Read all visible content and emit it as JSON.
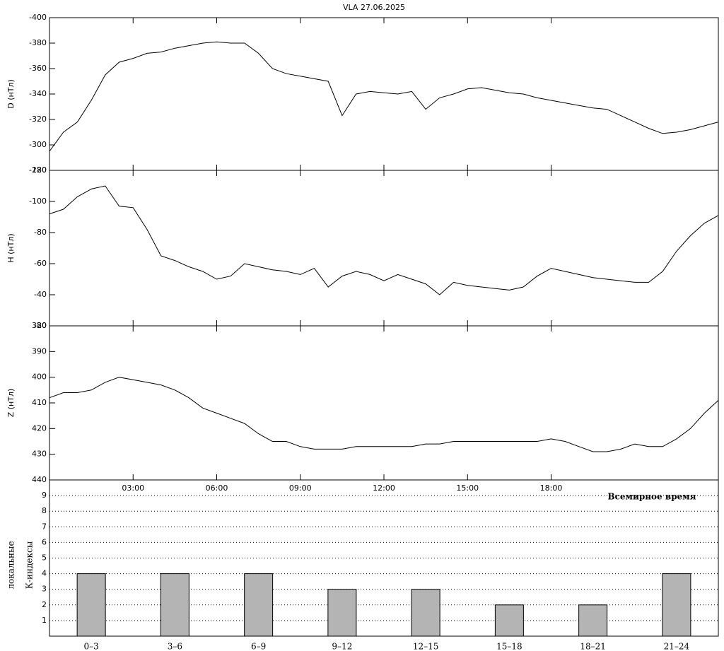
{
  "chart_data": [
    {
      "type": "line",
      "title": "VLA   27.06.2025",
      "ylabel": "D (нТл)",
      "xlim": [
        0,
        24
      ],
      "ylim": [
        -280,
        -400
      ],
      "yticks": [
        -280,
        -300,
        -320,
        -340,
        -360,
        -380,
        -400
      ],
      "x": [
        0,
        0.5,
        1,
        1.5,
        2,
        2.5,
        3,
        3.5,
        4,
        4.5,
        5,
        5.5,
        6,
        6.5,
        7,
        7.5,
        8,
        8.5,
        9,
        9.5,
        10,
        10.5,
        11,
        11.5,
        12,
        12.5,
        13,
        13.5,
        14,
        14.5,
        15,
        15.5,
        16,
        16.5,
        17,
        17.5,
        18,
        18.5,
        19,
        19.5,
        20,
        20.5,
        21,
        21.5,
        22,
        22.5,
        23,
        23.5,
        24
      ],
      "series": [
        {
          "name": "D",
          "color": "#000000",
          "values": [
            -295,
            -310,
            -318,
            -335,
            -355,
            -365,
            -368,
            -372,
            -373,
            -376,
            -378,
            -380,
            -381,
            -380,
            -380,
            -372,
            -360,
            -356,
            -354,
            -352,
            -350,
            -323,
            -340,
            -342,
            -341,
            -340,
            -342,
            -328,
            -337,
            -340,
            -344,
            -345,
            -343,
            -341,
            -340,
            -337,
            -335,
            -333,
            -331,
            -329,
            -328,
            -323,
            -318,
            -313,
            -309,
            -310,
            -312,
            -315,
            -318
          ]
        }
      ]
    },
    {
      "type": "line",
      "ylabel": "H (нТл)",
      "xlim": [
        0,
        24
      ],
      "ylim": [
        -20,
        -120
      ],
      "yticks": [
        -20,
        -40,
        -60,
        -80,
        -100,
        -120
      ],
      "x": [
        0,
        0.5,
        1,
        1.5,
        2,
        2.5,
        3,
        3.5,
        4,
        4.5,
        5,
        5.5,
        6,
        6.5,
        7,
        7.5,
        8,
        8.5,
        9,
        9.5,
        10,
        10.5,
        11,
        11.5,
        12,
        12.5,
        13,
        13.5,
        14,
        14.5,
        15,
        15.5,
        16,
        16.5,
        17,
        17.5,
        18,
        18.5,
        19,
        19.5,
        20,
        20.5,
        21,
        21.5,
        22,
        22.5,
        23,
        23.5,
        24
      ],
      "series": [
        {
          "name": "H",
          "color": "#000000",
          "values": [
            -92,
            -95,
            -103,
            -108,
            -110,
            -97,
            -96,
            -82,
            -65,
            -62,
            -58,
            -55,
            -50,
            -52,
            -60,
            -58,
            -56,
            -55,
            -53,
            -57,
            -45,
            -52,
            -55,
            -53,
            -49,
            -53,
            -50,
            -47,
            -40,
            -48,
            -46,
            -45,
            -44,
            -43,
            -45,
            -52,
            -57,
            -55,
            -53,
            -51,
            -50,
            -49,
            -48,
            -48,
            -55,
            -68,
            -78,
            -86,
            -91
          ]
        }
      ]
    },
    {
      "type": "line",
      "ylabel": "Z (нТл)",
      "xlabel": "Всемирное время",
      "xlim": [
        0,
        24
      ],
      "ylim": [
        440,
        380
      ],
      "yticks": [
        440,
        430,
        420,
        410,
        400,
        390,
        380
      ],
      "xticks": [
        {
          "value": 3,
          "label": "03:00"
        },
        {
          "value": 6,
          "label": "06:00"
        },
        {
          "value": 9,
          "label": "09:00"
        },
        {
          "value": 12,
          "label": "12:00"
        },
        {
          "value": 15,
          "label": "15:00"
        },
        {
          "value": 18,
          "label": "18:00"
        }
      ],
      "x": [
        0,
        0.5,
        1,
        1.5,
        2,
        2.5,
        3,
        3.5,
        4,
        4.5,
        5,
        5.5,
        6,
        6.5,
        7,
        7.5,
        8,
        8.5,
        9,
        9.5,
        10,
        10.5,
        11,
        11.5,
        12,
        12.5,
        13,
        13.5,
        14,
        14.5,
        15,
        15.5,
        16,
        16.5,
        17,
        17.5,
        18,
        18.5,
        19,
        19.5,
        20,
        20.5,
        21,
        21.5,
        22,
        22.5,
        23,
        23.5,
        24
      ],
      "series": [
        {
          "name": "Z",
          "color": "#000000",
          "values": [
            408,
            406,
            406,
            405,
            402,
            400,
            401,
            402,
            403,
            405,
            408,
            412,
            414,
            416,
            418,
            422,
            425,
            425,
            427,
            428,
            428,
            428,
            427,
            427,
            427,
            427,
            427,
            426,
            426,
            425,
            425,
            425,
            425,
            425,
            425,
            425,
            424,
            425,
            427,
            429,
            429,
            428,
            426,
            427,
            427,
            424,
            420,
            414,
            409
          ]
        }
      ]
    },
    {
      "type": "bar",
      "ylabel": [
        "локальные",
        "К-индексы"
      ],
      "ylim": [
        0,
        10
      ],
      "yticks": [
        1,
        2,
        3,
        4,
        5,
        6,
        7,
        8,
        9
      ],
      "grid": true,
      "color": "#b4b4b4",
      "categories": [
        "0–3",
        "3–6",
        "6–9",
        "9–12",
        "12–15",
        "15–18",
        "18–21",
        "21–24"
      ],
      "values": [
        4,
        4,
        4,
        3,
        3,
        2,
        2,
        4
      ]
    }
  ]
}
